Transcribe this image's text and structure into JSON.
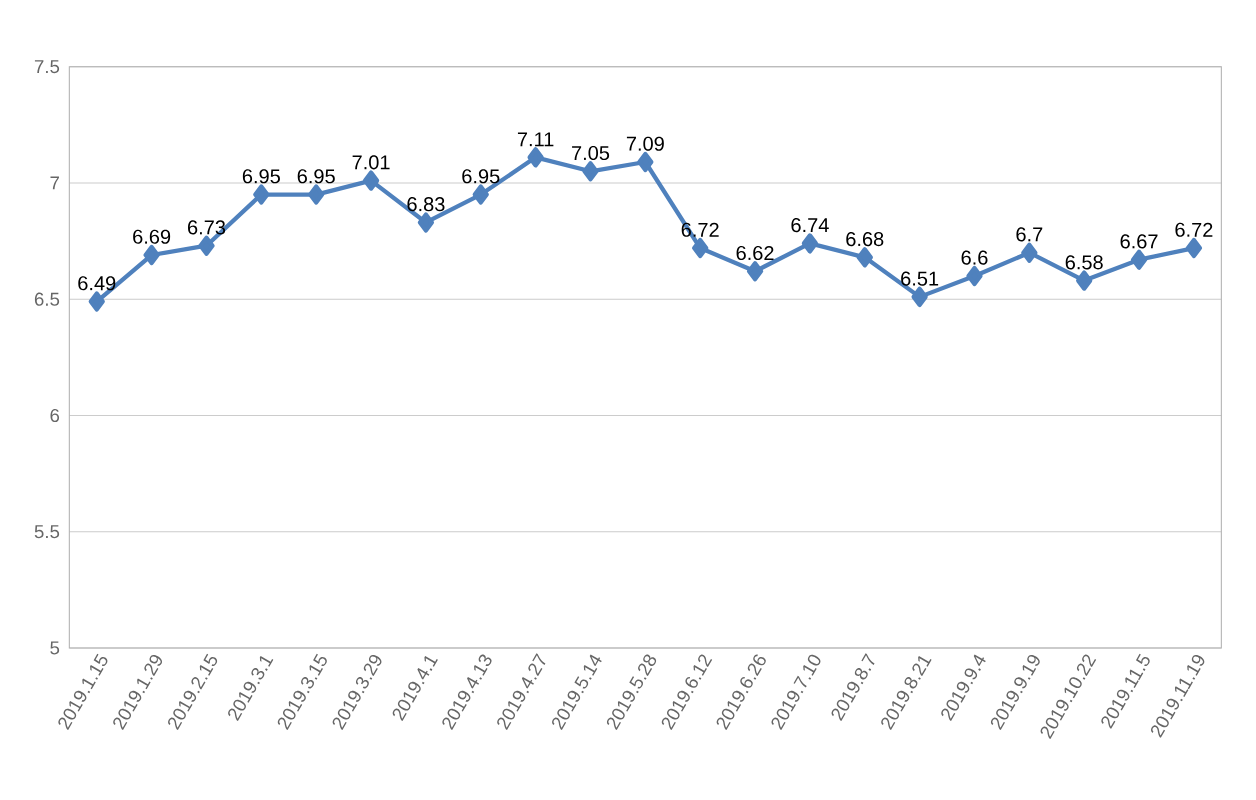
{
  "chart_data": {
    "type": "line",
    "categories": [
      "2019.1.15",
      "2019.1.29",
      "2019.2.15",
      "2019.3.1",
      "2019.3.15",
      "2019.3.29",
      "2019.4.1",
      "2019.4.13",
      "2019.4.27",
      "2019.5.14",
      "2019.5.28",
      "2019.6.12",
      "2019.6.26",
      "2019.7.10",
      "2019.8.7",
      "2019.8.21",
      "2019.9.4",
      "2019.9.19",
      "2019.10.22",
      "2019.11.5",
      "2019.11.19"
    ],
    "values": [
      6.49,
      6.69,
      6.73,
      6.95,
      6.95,
      7.01,
      6.83,
      6.95,
      7.11,
      7.05,
      7.09,
      6.72,
      6.62,
      6.74,
      6.68,
      6.51,
      6.6,
      6.7,
      6.58,
      6.67,
      6.72
    ],
    "value_labels": [
      "6.49",
      "6.69",
      "6.73",
      "6.95",
      "6.95",
      "7.01",
      "6.83",
      "6.95",
      "7.11",
      "7.05",
      "7.09",
      "6.72",
      "6.62",
      "6.74",
      "6.68",
      "6.51",
      "6.6",
      "6.7",
      "6.58",
      "6.67",
      "6.72"
    ],
    "color": "#4f81bd",
    "ylim": [
      5,
      7.5
    ],
    "yticks": [
      5,
      5.5,
      6,
      6.5,
      7,
      7.5
    ],
    "grid": "y",
    "marker": "diamond",
    "line_style": "solid"
  }
}
